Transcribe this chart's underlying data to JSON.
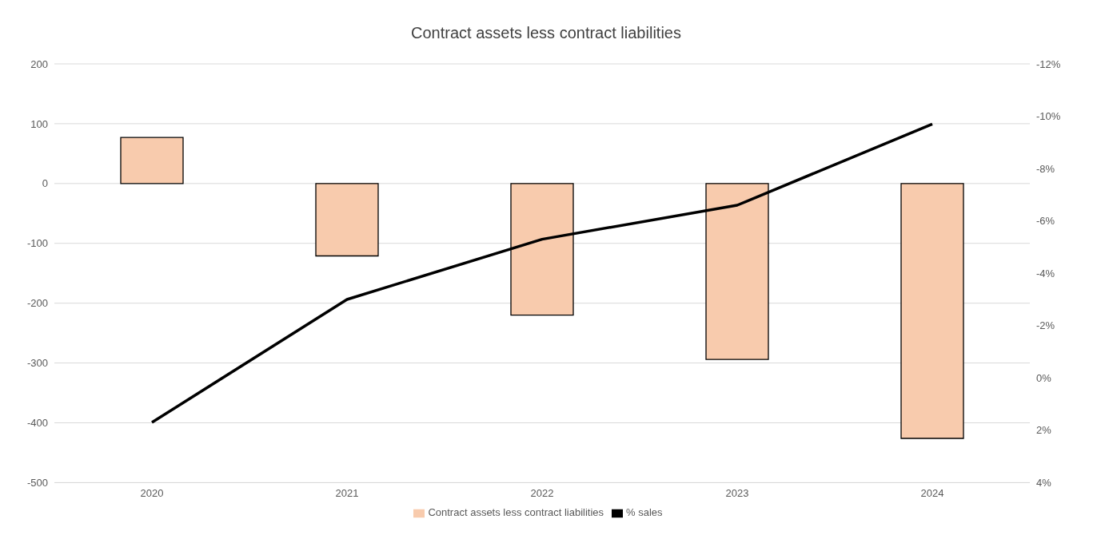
{
  "chart_data": {
    "type": "bar",
    "title": "Contract assets less contract liabilities",
    "categories": [
      "2020",
      "2021",
      "2022",
      "2023",
      "2024"
    ],
    "series": [
      {
        "name": "Contract assets less contract liabilities",
        "color": "#f8cbad",
        "values": [
          77,
          -121,
          -220,
          -294,
          -426
        ]
      },
      {
        "name": "% sales",
        "type": "line",
        "axis": "y2",
        "color": "#000000",
        "values": [
          1.7,
          -3.0,
          -5.3,
          -6.6,
          -9.7
        ]
      }
    ],
    "ylim": [
      -500,
      200
    ],
    "yticks": [
      -500,
      -400,
      -300,
      -200,
      -100,
      0,
      100,
      200
    ],
    "y2lim": [
      4,
      -12
    ],
    "y2ticks": [
      {
        "value": 4,
        "label": "4%"
      },
      {
        "value": 2,
        "label": "2%"
      },
      {
        "value": 0,
        "label": "0%"
      },
      {
        "value": -2,
        "label": "-2%"
      },
      {
        "value": -4,
        "label": "-4%"
      },
      {
        "value": -6,
        "label": "-6%"
      },
      {
        "value": -8,
        "label": "-8%"
      },
      {
        "value": -10,
        "label": "-10%"
      },
      {
        "value": -12,
        "label": "-12%"
      }
    ],
    "grid": "y",
    "legend": "bottom",
    "marker": "none",
    "line_style": "solid"
  }
}
